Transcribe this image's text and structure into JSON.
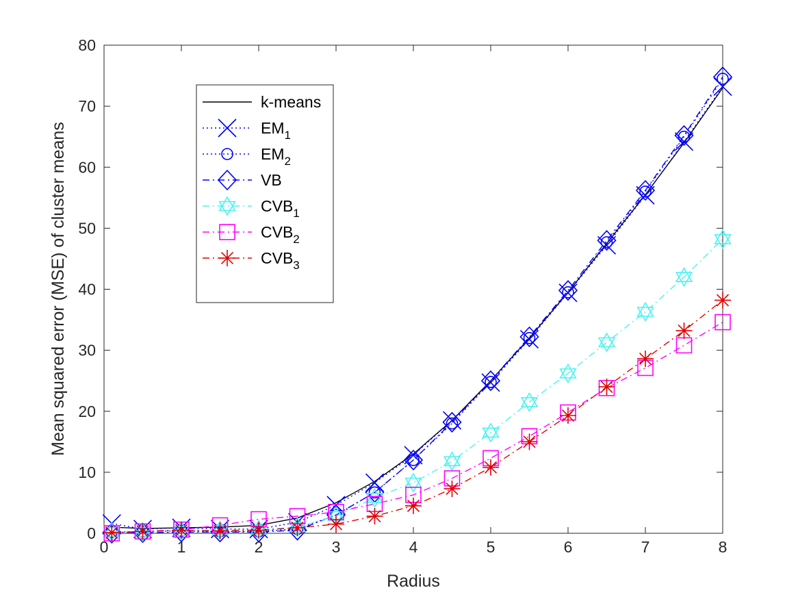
{
  "chart_data": {
    "type": "line",
    "title": "",
    "xlabel": "Radius",
    "ylabel": "Mean squared error (MSE) of cluster means",
    "xlim": [
      0,
      8
    ],
    "ylim": [
      0,
      80
    ],
    "xticks": [
      "0",
      "1",
      "2",
      "3",
      "4",
      "5",
      "6",
      "7",
      "8"
    ],
    "yticks": [
      "0",
      "10",
      "20",
      "30",
      "40",
      "50",
      "60",
      "70",
      "80"
    ],
    "grid": false,
    "legend_position": "upper-left",
    "x": [
      0.1,
      0.5,
      1,
      1.5,
      2,
      2.5,
      3,
      3.5,
      4,
      4.5,
      5,
      5.5,
      6,
      6.5,
      7,
      7.5,
      8
    ],
    "series": [
      {
        "name": "k-means",
        "label_main": "k-means",
        "label_sub": "",
        "color": "#000000",
        "dash": "solid",
        "marker": "none",
        "values": [
          1.0,
          0.8,
          0.9,
          1.0,
          1.3,
          2.5,
          5.0,
          8.5,
          13.0,
          18.5,
          25.0,
          32.0,
          39.5,
          47.5,
          55.5,
          64.0,
          73.0
        ]
      },
      {
        "name": "EM_1",
        "label_main": "EM",
        "label_sub": "1",
        "color": "#0000ff",
        "dash": "dotted",
        "marker": "x",
        "values": [
          1.6,
          0.7,
          0.9,
          0.7,
          0.7,
          1.8,
          4.6,
          8.3,
          12.8,
          18.5,
          24.7,
          31.8,
          39.4,
          47.2,
          55.4,
          64.2,
          73.2
        ]
      },
      {
        "name": "EM_2",
        "label_main": "EM",
        "label_sub": "2",
        "color": "#0000ff",
        "dash": "dotted",
        "marker": "circle",
        "values": [
          0.2,
          0.3,
          0.4,
          0.3,
          0.3,
          0.7,
          3.0,
          6.7,
          12.0,
          18.0,
          24.8,
          32.0,
          39.5,
          47.7,
          56.0,
          65.0,
          74.5
        ]
      },
      {
        "name": "VB",
        "label_main": "VB",
        "label_sub": "",
        "color": "#0000ff",
        "dash": "dashdot",
        "marker": "diamond",
        "values": [
          0.0,
          0.1,
          0.2,
          0.2,
          0.2,
          0.5,
          3.0,
          6.7,
          12.0,
          18.2,
          25.0,
          32.2,
          39.8,
          48.0,
          56.2,
          65.2,
          74.8
        ]
      },
      {
        "name": "CVB_1",
        "label_main": "CVB",
        "label_sub": "1",
        "color": "#4cf2f2",
        "dash": "dashdot",
        "marker": "hexagram",
        "values": [
          0.2,
          0.2,
          0.4,
          0.5,
          0.6,
          1.0,
          2.8,
          5.8,
          8.3,
          11.8,
          16.5,
          21.5,
          26.2,
          31.3,
          36.3,
          42.0,
          48.2
        ]
      },
      {
        "name": "CVB_2",
        "label_main": "CVB",
        "label_sub": "2",
        "color": "#ff00ff",
        "dash": "dashdot",
        "marker": "square",
        "values": [
          0.0,
          0.3,
          0.6,
          1.3,
          2.3,
          2.8,
          3.5,
          4.8,
          6.3,
          9.0,
          12.3,
          15.9,
          19.8,
          23.8,
          27.1,
          30.8,
          34.6
        ]
      },
      {
        "name": "CVB_3",
        "label_main": "CVB",
        "label_sub": "3",
        "color": "#e00000",
        "dash": "dashdot",
        "marker": "asterisk",
        "values": [
          0.1,
          0.3,
          0.5,
          0.4,
          0.5,
          0.9,
          1.5,
          2.8,
          4.5,
          7.3,
          10.8,
          15.0,
          19.3,
          24.0,
          28.6,
          33.2,
          38.2
        ]
      }
    ]
  }
}
